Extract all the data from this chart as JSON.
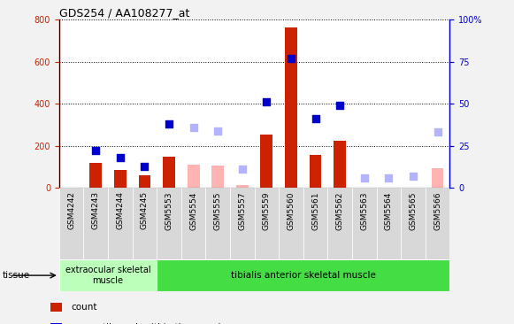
{
  "title": "GDS254 / AA108277_at",
  "categories": [
    "GSM4242",
    "GSM4243",
    "GSM4244",
    "GSM4245",
    "GSM5553",
    "GSM5554",
    "GSM5555",
    "GSM5557",
    "GSM5559",
    "GSM5560",
    "GSM5561",
    "GSM5562",
    "GSM5563",
    "GSM5564",
    "GSM5565",
    "GSM5566"
  ],
  "count": [
    0,
    120,
    85,
    60,
    150,
    0,
    0,
    0,
    255,
    760,
    155,
    225,
    0,
    0,
    0,
    0
  ],
  "count_absent": [
    0,
    0,
    0,
    0,
    0,
    110,
    105,
    15,
    0,
    0,
    0,
    0,
    0,
    0,
    0,
    95
  ],
  "percentile_raw": [
    0,
    22,
    18,
    13,
    38,
    0,
    0,
    0,
    51,
    77,
    41,
    49,
    0,
    0,
    0,
    0
  ],
  "percentile_absent_raw": [
    0,
    0,
    0,
    0,
    0,
    36,
    34,
    11,
    0,
    0,
    0,
    0,
    6,
    6,
    7,
    33
  ],
  "absent_mask": [
    false,
    false,
    false,
    false,
    false,
    true,
    true,
    true,
    false,
    false,
    false,
    false,
    true,
    true,
    true,
    true
  ],
  "ylim_left": [
    0,
    800
  ],
  "ylim_right": [
    0,
    100
  ],
  "yticks_left": [
    0,
    200,
    400,
    600,
    800
  ],
  "yticks_right": [
    0,
    25,
    50,
    75,
    100
  ],
  "ytick_labels_right": [
    "0",
    "25",
    "50",
    "75",
    "100%"
  ],
  "color_count": "#cc2200",
  "color_percentile": "#0000cc",
  "color_count_absent": "#ffb3b3",
  "color_percentile_absent": "#b3b3ff",
  "color_axis_left": "#cc2200",
  "color_axis_right": "#0000cc",
  "n_group1": 4,
  "n_group2": 12,
  "tissue_label1": "extraocular skeletal\nmuscle",
  "tissue_label2": "tibialis anterior skeletal muscle",
  "tissue_color1": "#bbffbb",
  "tissue_color2": "#44dd44",
  "plot_bg": "#ffffff",
  "fig_bg": "#f2f2f2",
  "xtick_bg": "#d8d8d8",
  "bar_width": 0.5
}
